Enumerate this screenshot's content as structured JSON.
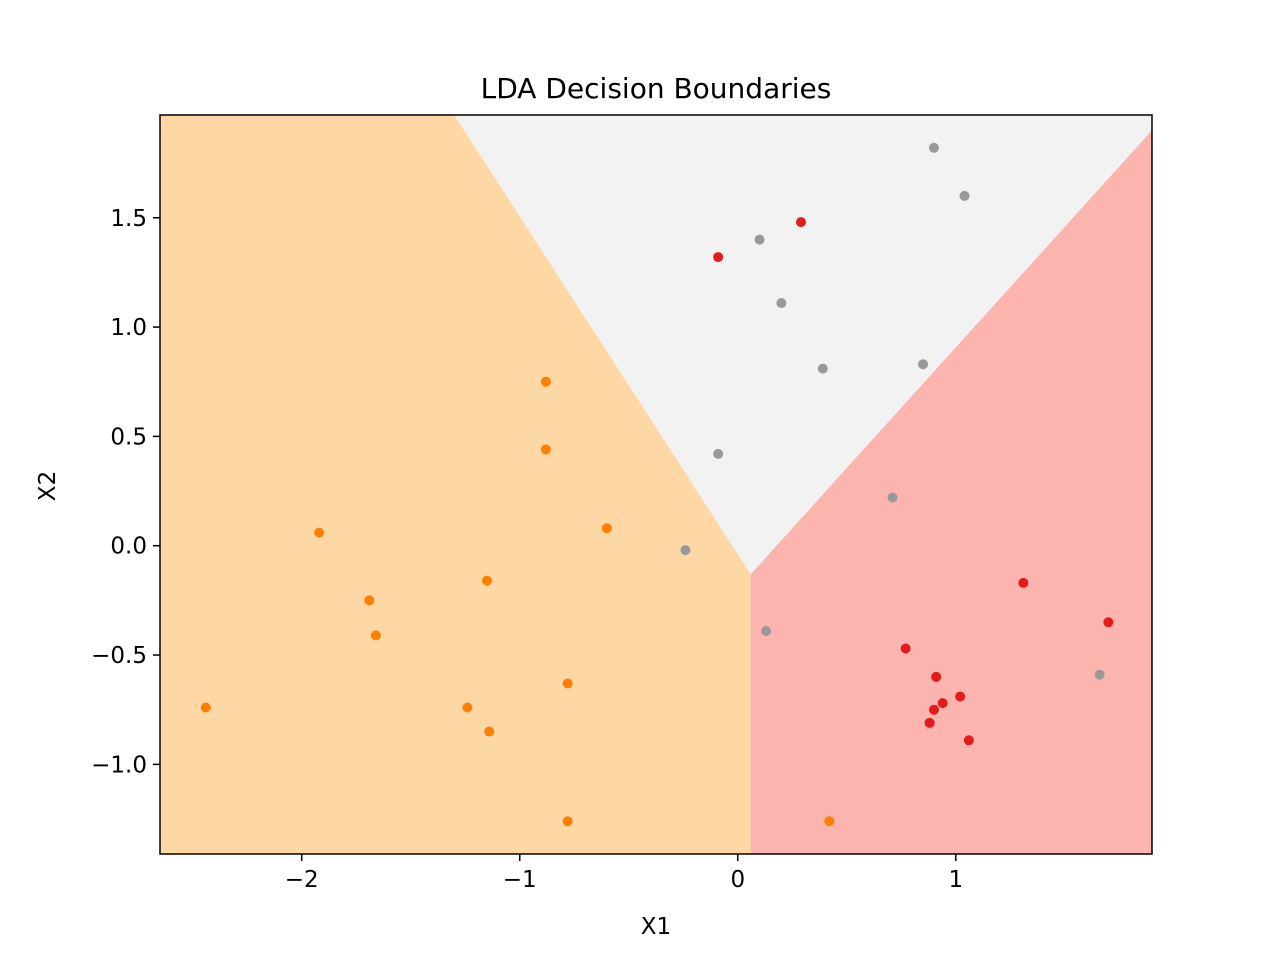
{
  "chart_data": {
    "type": "scatter",
    "title": "LDA Decision Boundaries",
    "xlabel": "X1",
    "ylabel": "X2",
    "xlim": [
      -2.65,
      1.9
    ],
    "ylim": [
      -1.41,
      1.97
    ],
    "x_ticks": [
      {
        "value": -2,
        "label": "−2"
      },
      {
        "value": -1,
        "label": "−1"
      },
      {
        "value": 0,
        "label": "0"
      },
      {
        "value": 1,
        "label": "1"
      }
    ],
    "y_ticks": [
      {
        "value": -1.0,
        "label": "−1.0"
      },
      {
        "value": -0.5,
        "label": "−0.5"
      },
      {
        "value": 0.0,
        "label": "0.0"
      },
      {
        "value": 0.5,
        "label": "0.5"
      },
      {
        "value": 1.0,
        "label": "1.0"
      },
      {
        "value": 1.5,
        "label": "1.5"
      }
    ],
    "grid": false,
    "regions": [
      {
        "color": "#fdd8a5",
        "polygon": [
          [
            -2.65,
            -1.41
          ],
          [
            0.06,
            -1.41
          ],
          [
            0.06,
            -0.13
          ],
          [
            -1.3,
            1.97
          ],
          [
            -2.65,
            1.97
          ]
        ]
      },
      {
        "color": "#f2f2f2",
        "polygon": [
          [
            -1.3,
            1.97
          ],
          [
            0.06,
            -0.13
          ],
          [
            1.9,
            1.9
          ],
          [
            1.9,
            1.97
          ]
        ]
      },
      {
        "color": "#fbb4ae",
        "polygon": [
          [
            0.06,
            -1.41
          ],
          [
            1.9,
            -1.41
          ],
          [
            1.9,
            1.9
          ],
          [
            0.06,
            -0.13
          ]
        ]
      }
    ],
    "series": [
      {
        "color": "#ff7f00",
        "points": [
          [
            -0.88,
            0.75
          ],
          [
            -0.88,
            0.44
          ],
          [
            -0.6,
            0.08
          ],
          [
            -1.92,
            0.06
          ],
          [
            -1.15,
            -0.16
          ],
          [
            -1.69,
            -0.25
          ],
          [
            -1.66,
            -0.41
          ],
          [
            -0.78,
            -0.63
          ],
          [
            -2.44,
            -0.74
          ],
          [
            -1.24,
            -0.74
          ],
          [
            -1.14,
            -0.85
          ],
          [
            -0.78,
            -1.26
          ],
          [
            0.42,
            -1.26
          ]
        ]
      },
      {
        "color": "#e41a1c",
        "points": [
          [
            0.29,
            1.48
          ],
          [
            -0.09,
            1.32
          ],
          [
            1.31,
            -0.17
          ],
          [
            1.7,
            -0.35
          ],
          [
            0.77,
            -0.47
          ],
          [
            0.91,
            -0.6
          ],
          [
            1.02,
            -0.69
          ],
          [
            0.94,
            -0.72
          ],
          [
            0.9,
            -0.75
          ],
          [
            0.88,
            -0.81
          ],
          [
            1.06,
            -0.89
          ]
        ]
      },
      {
        "color": "#999999",
        "points": [
          [
            0.9,
            1.82
          ],
          [
            1.04,
            1.6
          ],
          [
            0.1,
            1.4
          ],
          [
            0.2,
            1.11
          ],
          [
            0.39,
            0.81
          ],
          [
            0.85,
            0.83
          ],
          [
            -0.09,
            0.42
          ],
          [
            0.71,
            0.22
          ],
          [
            -0.24,
            -0.02
          ],
          [
            0.13,
            -0.39
          ],
          [
            1.66,
            -0.59
          ]
        ]
      }
    ]
  }
}
